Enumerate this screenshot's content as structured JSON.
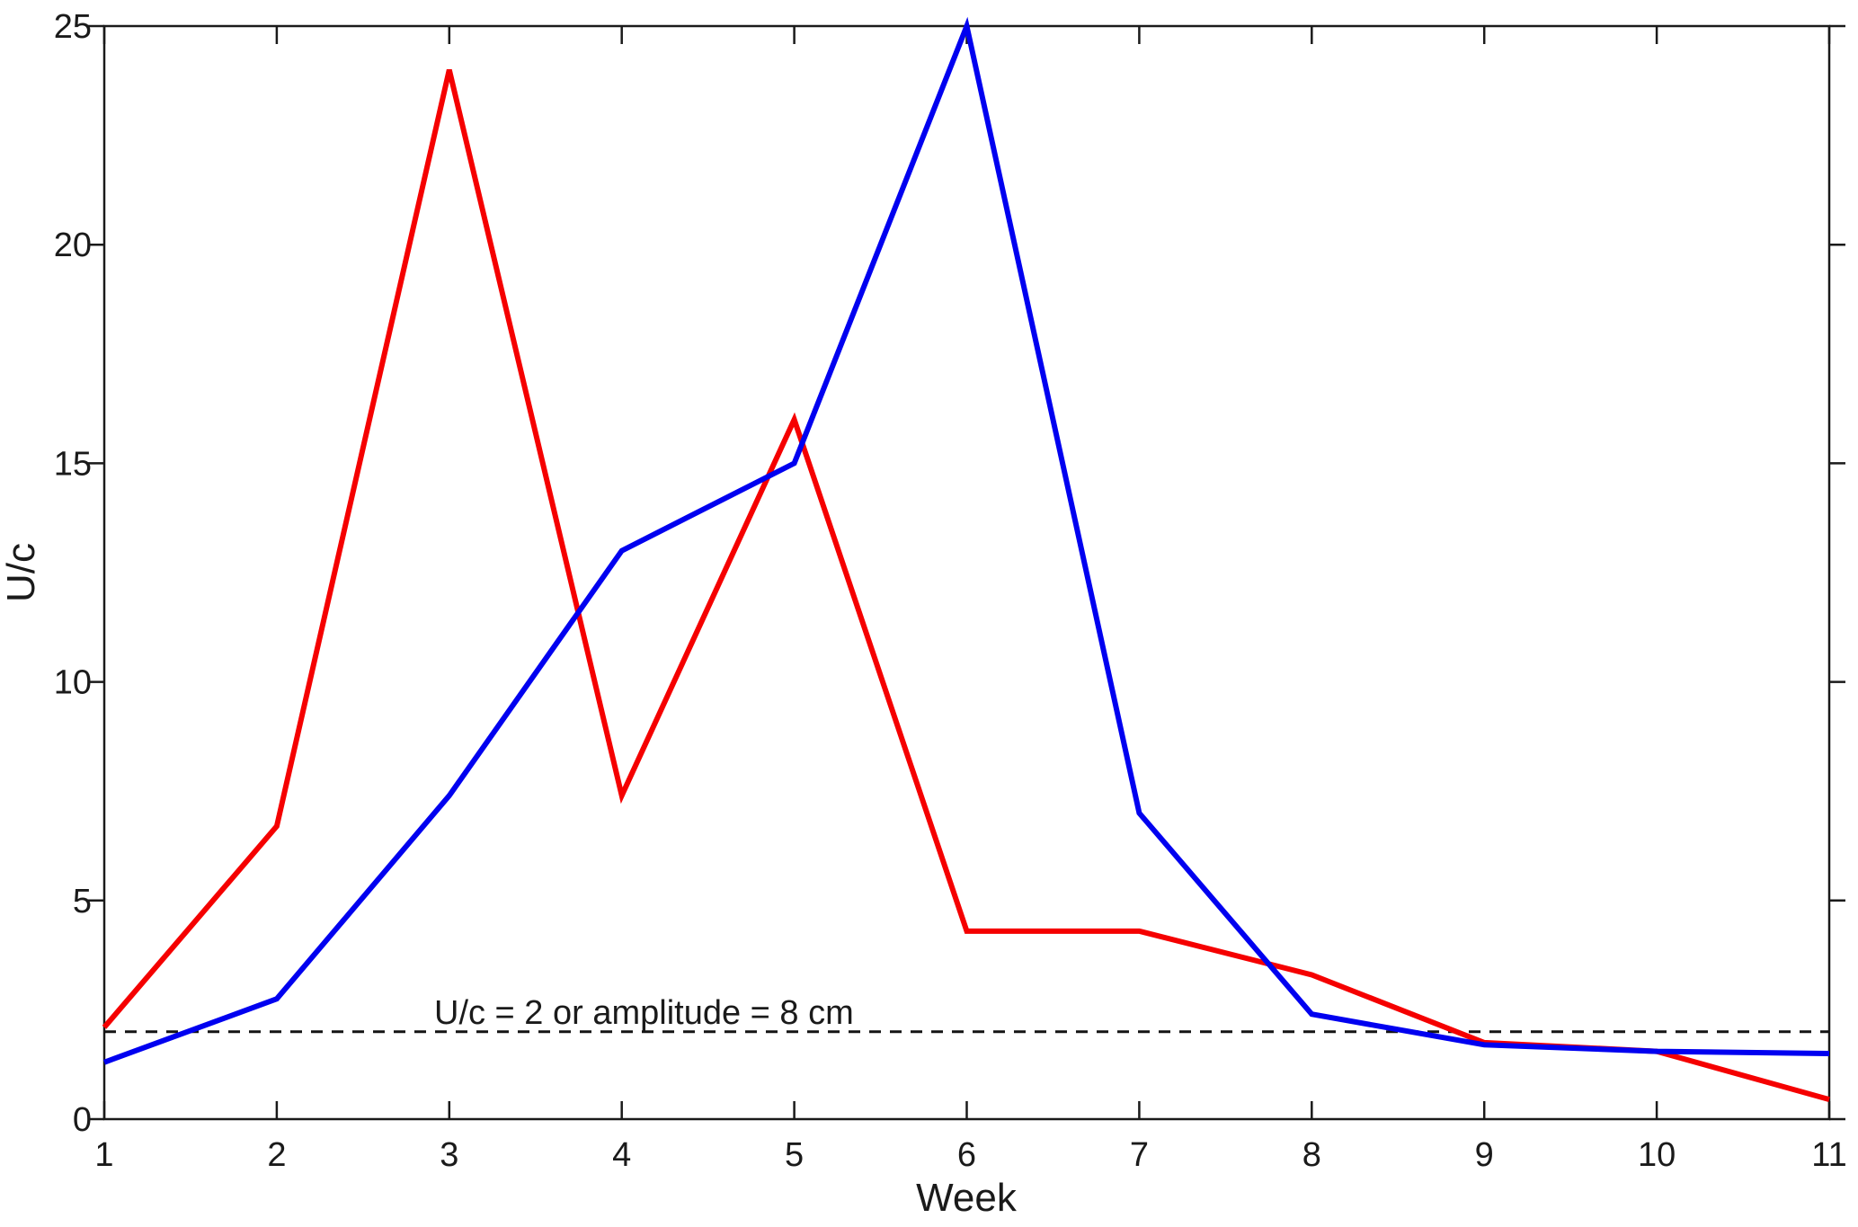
{
  "chart_data": {
    "type": "line",
    "x": [
      1,
      2,
      3,
      4,
      5,
      6,
      7,
      8,
      9,
      10,
      11
    ],
    "series": [
      {
        "name": "red",
        "color": "#f50000",
        "values": [
          2.1,
          6.7,
          24,
          7.4,
          16,
          4.3,
          4.3,
          3.3,
          1.75,
          1.55,
          0.45
        ]
      },
      {
        "name": "blue",
        "color": "#0000f0",
        "values": [
          1.3,
          2.75,
          7.4,
          13,
          15,
          25,
          7,
          2.4,
          1.7,
          1.55,
          1.5
        ]
      }
    ],
    "reference_line": {
      "y": 2,
      "style": "dashed",
      "color": "#141414"
    },
    "annotation": "U/c = 2 or amplitude = 8 cm",
    "title": "",
    "xlabel": "Week",
    "ylabel": "U/c",
    "xlim": [
      1,
      11
    ],
    "ylim": [
      0,
      25
    ],
    "x_ticks": [
      1,
      2,
      3,
      4,
      5,
      6,
      7,
      8,
      9,
      10,
      11
    ],
    "y_ticks": [
      0,
      5,
      10,
      15,
      20,
      25
    ],
    "grid": false,
    "legend": "none",
    "axis_color": "#1a1a1a"
  }
}
